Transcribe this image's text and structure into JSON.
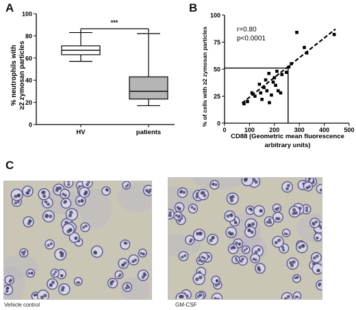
{
  "panels": {
    "a": {
      "letter": "A"
    },
    "b": {
      "letter": "B"
    },
    "c": {
      "letter": "C"
    }
  },
  "chart_data": [
    {
      "id": "A",
      "type": "box",
      "ylabel_line1": "% neutrophils with",
      "ylabel_line2": "≥2 zymosan particles",
      "ylim": [
        0,
        100
      ],
      "yticks": [
        0,
        20,
        40,
        60,
        80,
        100
      ],
      "categories": [
        "HV",
        "patients"
      ],
      "boxes": [
        {
          "name": "HV",
          "whisker_low": 57,
          "q1": 63,
          "median": 67,
          "q3": 71,
          "whisker_high": 83,
          "fill": "#ffffff"
        },
        {
          "name": "patients",
          "whisker_low": 17,
          "q1": 23,
          "median": 30,
          "q3": 43,
          "whisker_high": 82,
          "fill": "#b5b5b5"
        }
      ],
      "significance": "***"
    },
    {
      "id": "B",
      "type": "scatter",
      "xlabel_line1": "CD88 (Geometric mean fluorescence",
      "xlabel_line2": "arbitrary units)",
      "ylabel": "% of cells with ≥2 zymosan particles",
      "xlim": [
        0,
        500
      ],
      "ylim": [
        0,
        100
      ],
      "xticks": [
        0,
        100,
        200,
        300,
        400,
        500
      ],
      "yticks": [
        0,
        25,
        50,
        75,
        100
      ],
      "annotation_r": "r=0.80",
      "annotation_p": "p<0.0001",
      "points": [
        [
          78,
          18
        ],
        [
          92,
          20
        ],
        [
          110,
          28
        ],
        [
          122,
          25
        ],
        [
          140,
          36
        ],
        [
          145,
          28
        ],
        [
          150,
          22
        ],
        [
          158,
          33
        ],
        [
          165,
          40
        ],
        [
          170,
          30
        ],
        [
          178,
          46
        ],
        [
          180,
          19
        ],
        [
          188,
          26
        ],
        [
          195,
          38
        ],
        [
          200,
          42
        ],
        [
          205,
          35
        ],
        [
          210,
          48
        ],
        [
          215,
          30
        ],
        [
          225,
          28
        ],
        [
          230,
          45
        ],
        [
          248,
          47
        ],
        [
          258,
          52
        ],
        [
          268,
          55
        ],
        [
          290,
          84
        ],
        [
          320,
          70
        ],
        [
          330,
          65
        ],
        [
          440,
          82
        ]
      ],
      "fit": {
        "x": [
          70,
          445
        ],
        "y": [
          18.5,
          87
        ]
      },
      "reference": {
        "x": 255,
        "y": 51
      }
    }
  ],
  "micrographs": [
    {
      "caption": "Vehicle control"
    },
    {
      "caption": "GM-CSF"
    }
  ],
  "colors": {
    "background": "#c9c6b6",
    "cell_fill": "#d8d5e4",
    "cell_stroke": "#5c5592",
    "nucleus": "#3e3e63"
  }
}
